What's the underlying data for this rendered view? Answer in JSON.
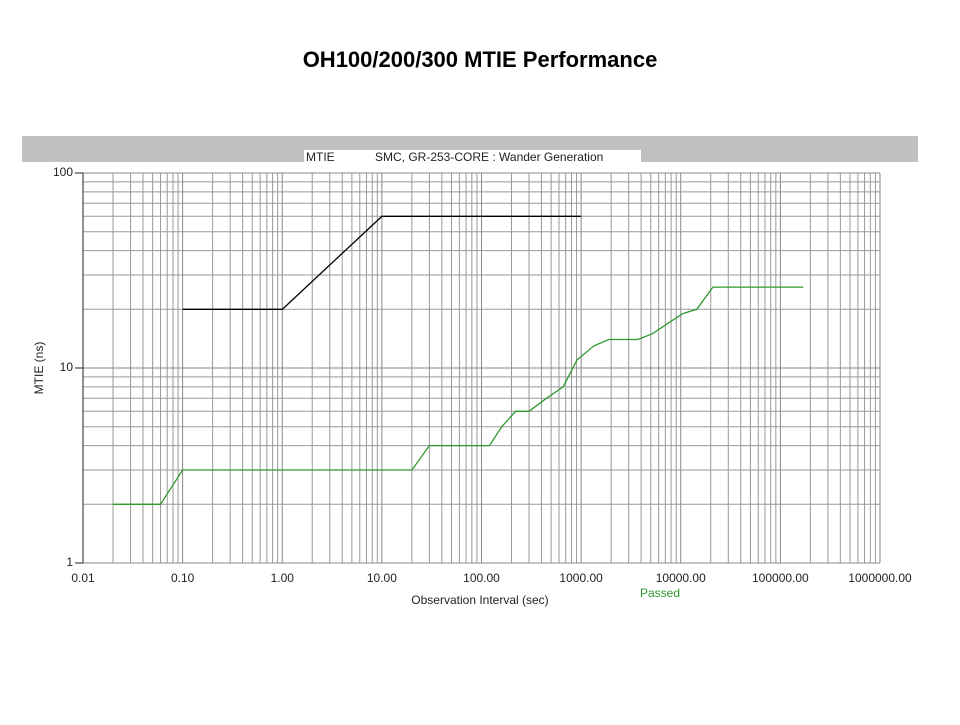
{
  "chart_data": {
    "type": "line",
    "title": "OH100/200/300 MTIE Performance",
    "panel_label": "MTIE",
    "subtitle": "SMC, GR-253-CORE : Wander Generation",
    "x_label": "Observation Interval (sec)",
    "y_label": "MTIE (ns)",
    "x_scale": "log",
    "y_scale": "log",
    "grid": true,
    "minor_grid": true,
    "xlim": [
      0.01,
      1000000
    ],
    "ylim": [
      1,
      100
    ],
    "xticks": [
      {
        "value": 0.01,
        "label": "0.01"
      },
      {
        "value": 0.1,
        "label": "0.10"
      },
      {
        "value": 1,
        "label": "1.00"
      },
      {
        "value": 10,
        "label": "10.00"
      },
      {
        "value": 100,
        "label": "100.00"
      },
      {
        "value": 1000,
        "label": "1000.00"
      },
      {
        "value": 10000,
        "label": "10000.00"
      },
      {
        "value": 100000,
        "label": "100000.00"
      },
      {
        "value": 1000000,
        "label": "1000000.00"
      }
    ],
    "yticks": [
      1,
      10,
      100
    ],
    "series": [
      {
        "color": "#000000",
        "x": [
          0.1,
          1,
          10,
          1000
        ],
        "values": [
          20,
          20,
          60,
          60
        ]
      },
      {
        "name": "Passed",
        "color": "#2e9a2e",
        "x": [
          0.02,
          0.06,
          0.1,
          20,
          30,
          120,
          160,
          220,
          300,
          450,
          660,
          910,
          1350,
          1900,
          3700,
          5200,
          7500,
          10500,
          14500,
          21000,
          170000
        ],
        "values": [
          2,
          2,
          3,
          3,
          4,
          4,
          5,
          6,
          6,
          7,
          8,
          11,
          13,
          14,
          14,
          15,
          17,
          19,
          20,
          26,
          26
        ]
      }
    ]
  }
}
